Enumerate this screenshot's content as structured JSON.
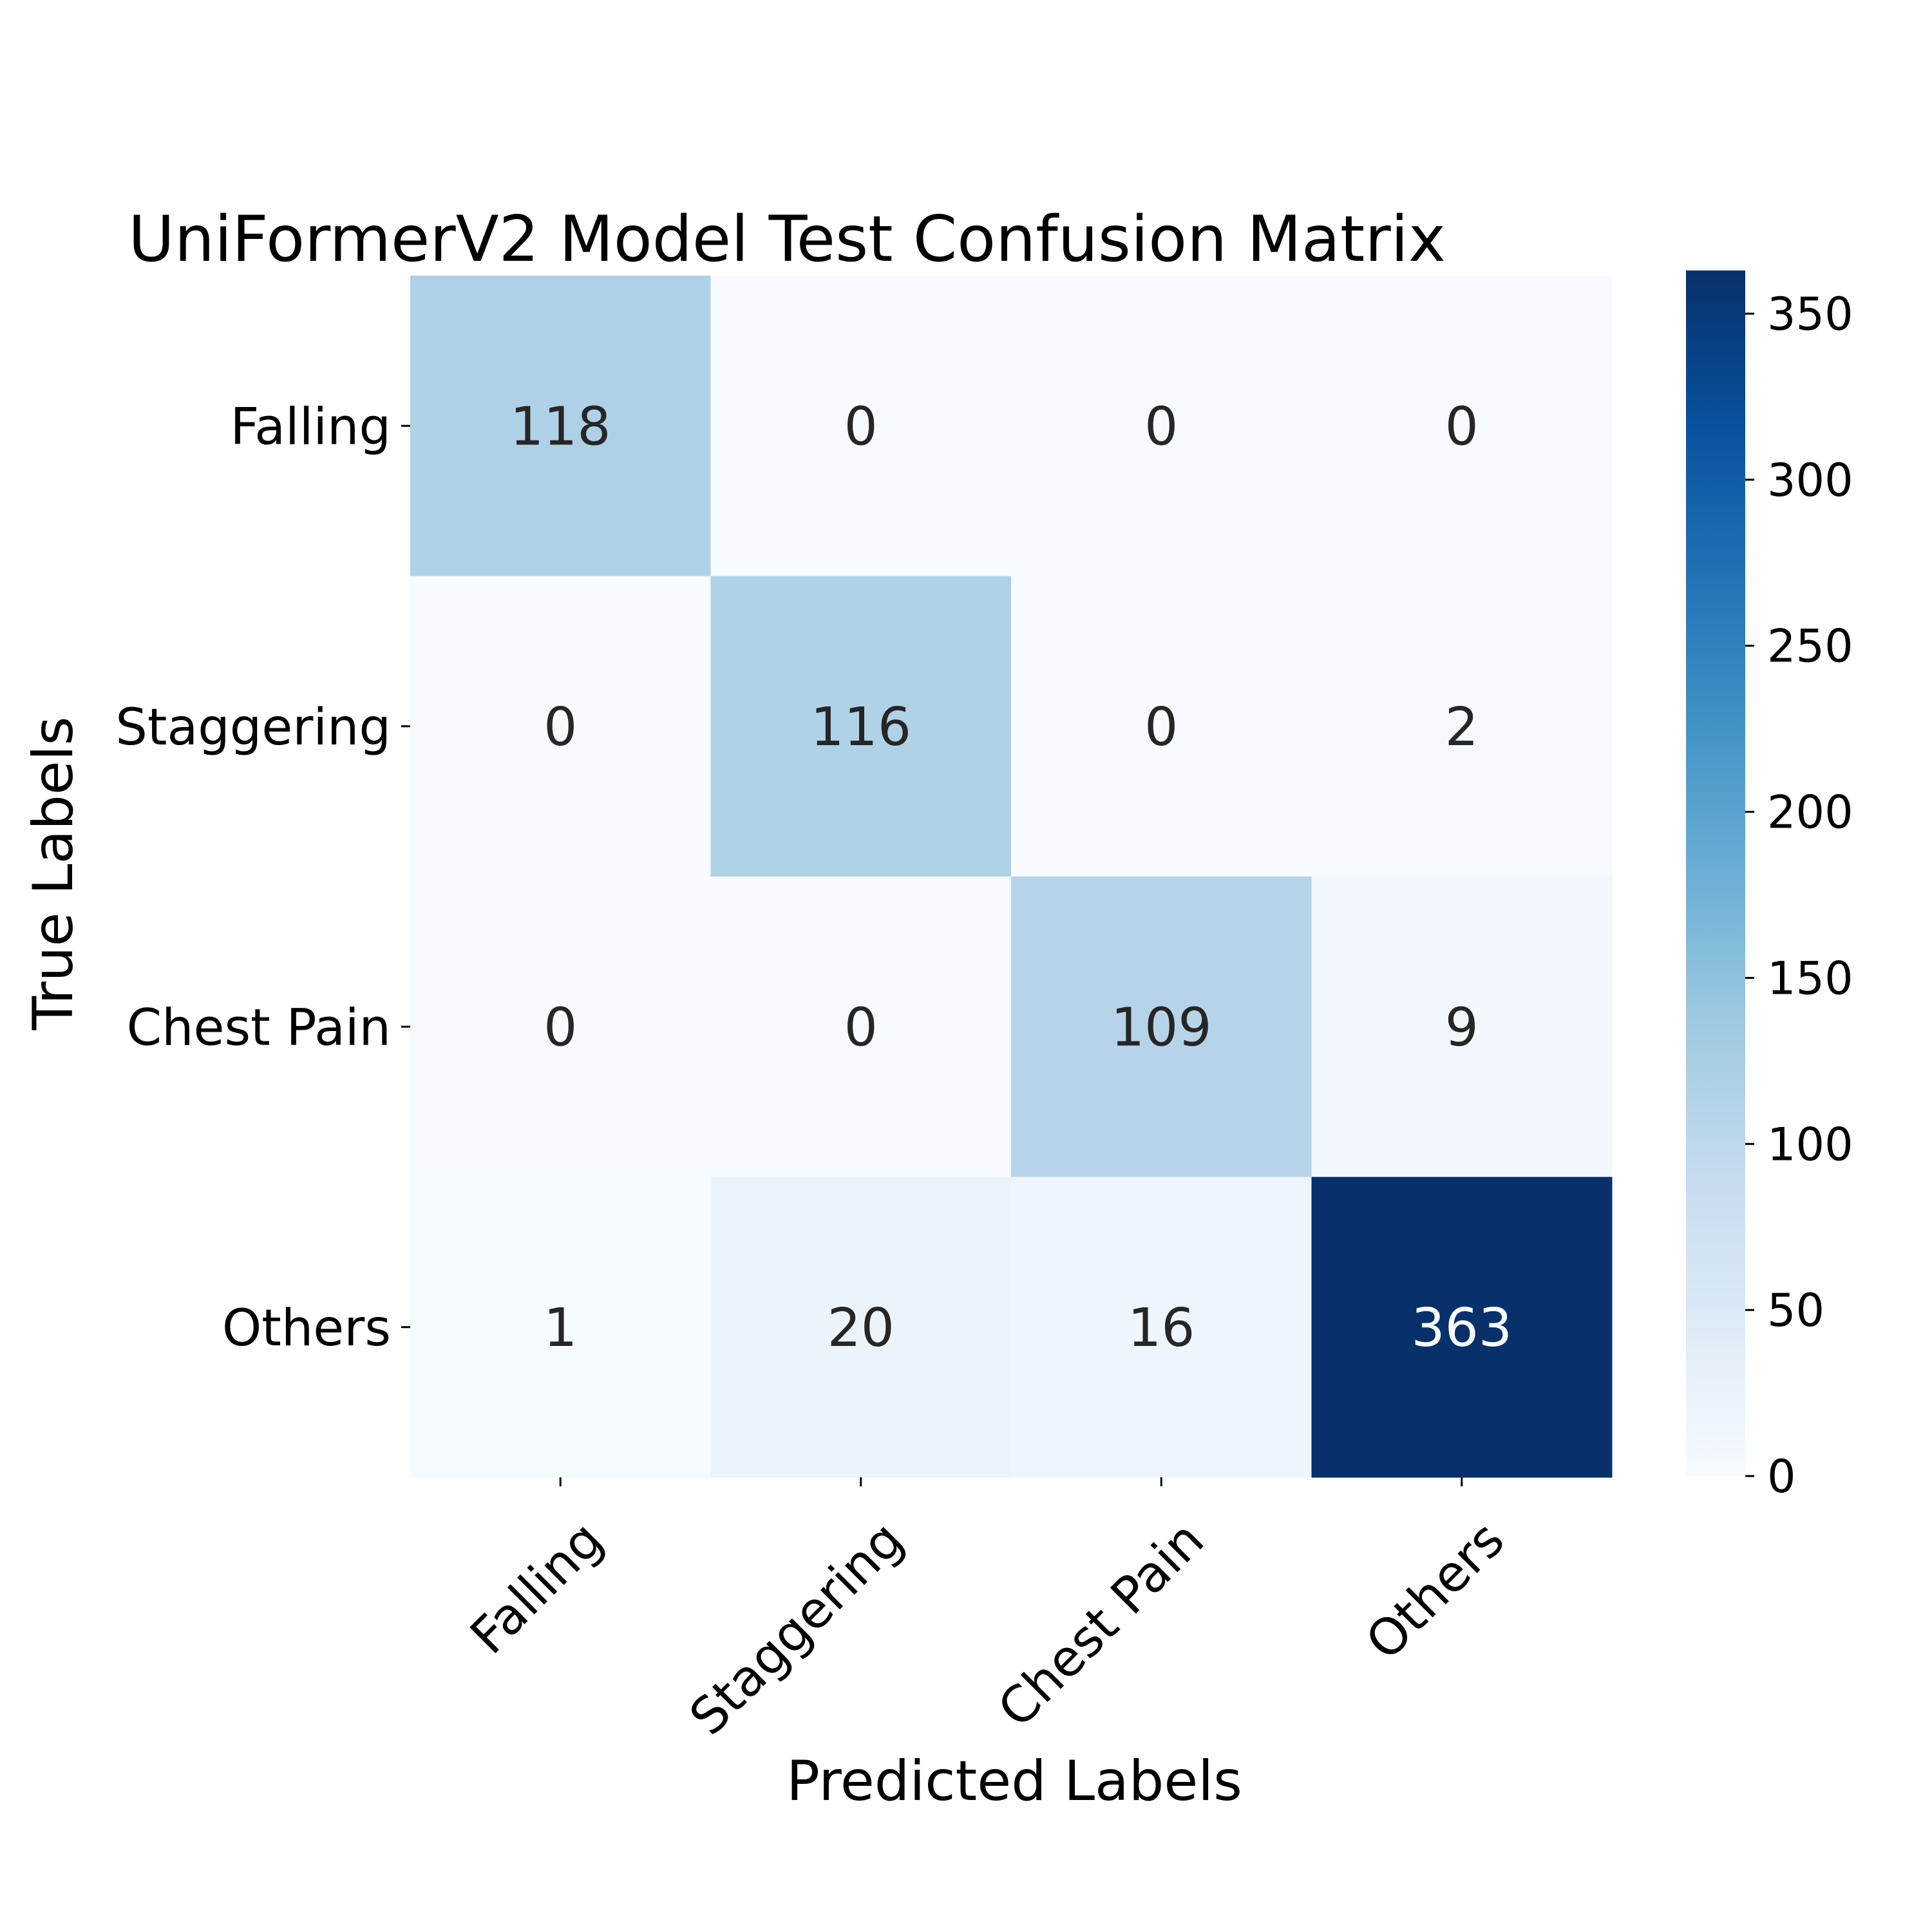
{
  "chart_data": {
    "type": "heatmap",
    "title": "UniFormerV2 Model Test Confusion Matrix",
    "xlabel": "Predicted Labels",
    "ylabel": "True Labels",
    "x_categories": [
      "Falling",
      "Staggering",
      "Chest Pain",
      "Others"
    ],
    "y_categories": [
      "Falling",
      "Staggering",
      "Chest Pain",
      "Others"
    ],
    "values": [
      [
        118,
        0,
        0,
        0
      ],
      [
        0,
        116,
        0,
        2
      ],
      [
        0,
        0,
        109,
        9
      ],
      [
        1,
        20,
        16,
        363
      ]
    ],
    "colormap": "Blues",
    "colorbar": {
      "range": [
        0,
        363
      ],
      "ticks": [
        "0",
        "50",
        "100",
        "150",
        "200",
        "250",
        "300",
        "350"
      ]
    },
    "colors": {
      "low": "#f7fbff",
      "high": "#08306b",
      "light_text": "#ffffff",
      "dark_text": "#262626"
    }
  }
}
